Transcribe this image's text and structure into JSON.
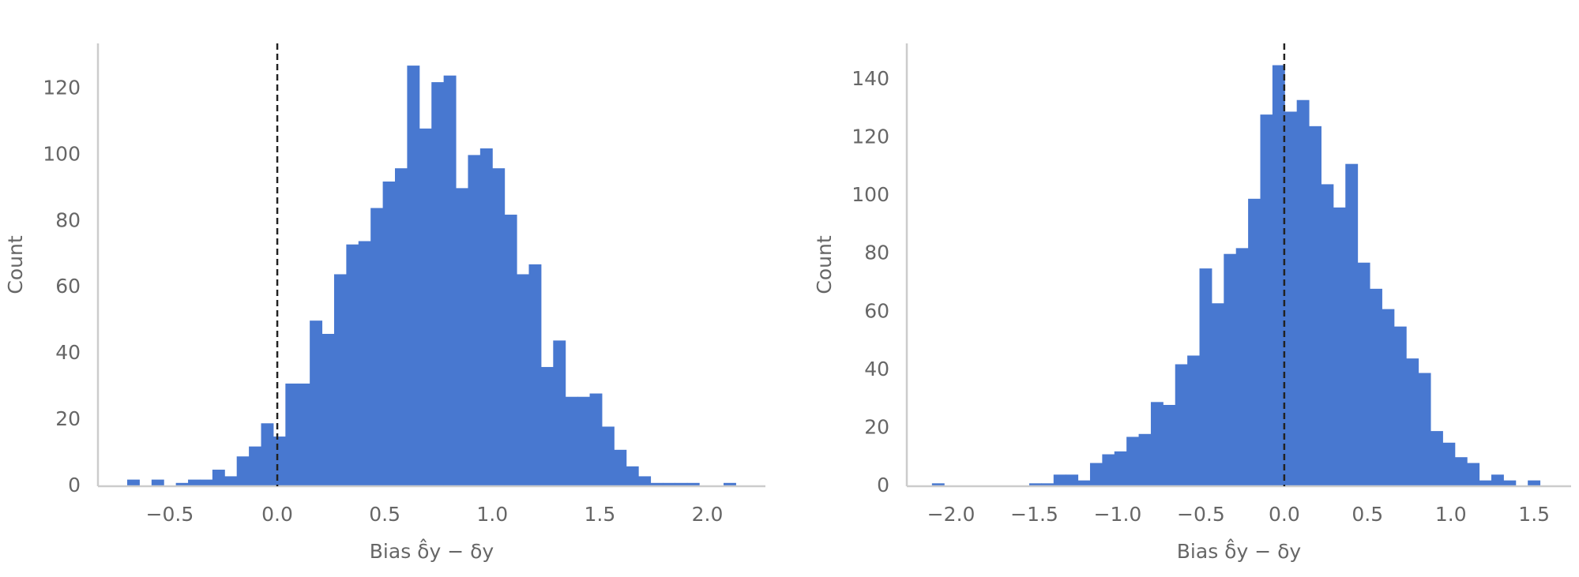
{
  "chart_data": [
    {
      "type": "histogram",
      "color": "#4878d0",
      "xlabel": "Bias δ̂y − δy",
      "ylabel": "Count",
      "bins": [
        -0.698,
        -0.6414,
        -0.5848,
        -0.5282,
        -0.4716,
        -0.415,
        -0.3584,
        -0.3018,
        -0.2452,
        -0.1886,
        -0.132,
        -0.0754,
        -0.0188,
        0.0378,
        0.0944,
        0.151,
        0.2076,
        0.2642,
        0.3208,
        0.3774,
        0.434,
        0.4906,
        0.5472,
        0.6038,
        0.6604,
        0.717,
        0.7736,
        0.8302,
        0.8868,
        0.9434,
        1.0,
        1.0566,
        1.1132,
        1.1698,
        1.2264,
        1.283,
        1.3396,
        1.3962,
        1.4528,
        1.5094,
        1.566,
        1.6226,
        1.6792,
        1.7358,
        1.7924,
        1.849,
        1.9056,
        1.9622,
        2.0188,
        2.0754,
        2.132
      ],
      "values": [
        2,
        0,
        2,
        0,
        1,
        2,
        2,
        5,
        3,
        9,
        12,
        19,
        15,
        31,
        31,
        50,
        46,
        64,
        73,
        74,
        84,
        92,
        96,
        127,
        108,
        122,
        124,
        90,
        100,
        102,
        96,
        82,
        64,
        67,
        36,
        44,
        27,
        27,
        28,
        18,
        11,
        6,
        3,
        1,
        1,
        1,
        1,
        0,
        0,
        1
      ],
      "xlim": [
        -0.834,
        2.27
      ],
      "ylim": [
        0,
        133.7
      ],
      "xticks": [
        {
          "value": -0.5,
          "label": "−0.5"
        },
        {
          "value": 0,
          "label": "0.0"
        },
        0.5,
        {
          "value": 1,
          "label": "1.0"
        },
        1.5,
        {
          "value": 2,
          "label": "2.0"
        }
      ],
      "yticks": [
        0,
        20,
        40,
        60,
        80,
        100,
        120
      ],
      "vline": 0
    },
    {
      "type": "histogram",
      "color": "#4878d0",
      "xlabel": "Bias δ̂y − δy",
      "ylabel": "Count",
      "bins": [
        -2.115,
        -2.042,
        -1.969,
        -1.896,
        -1.823,
        -1.75,
        -1.677,
        -1.604,
        -1.531,
        -1.458,
        -1.385,
        -1.312,
        -1.239,
        -1.166,
        -1.093,
        -1.02,
        -0.947,
        -0.874,
        -0.801,
        -0.728,
        -0.655,
        -0.582,
        -0.509,
        -0.436,
        -0.363,
        -0.29,
        -0.217,
        -0.144,
        -0.071,
        0.002,
        0.075,
        0.148,
        0.221,
        0.294,
        0.367,
        0.44,
        0.513,
        0.586,
        0.659,
        0.732,
        0.805,
        0.878,
        0.951,
        1.024,
        1.097,
        1.17,
        1.243,
        1.316,
        1.389,
        1.462,
        1.535
      ],
      "values": [
        1,
        0,
        0,
        0,
        0,
        0,
        0,
        0,
        1,
        1,
        4,
        4,
        2,
        8,
        11,
        12,
        17,
        18,
        29,
        28,
        42,
        45,
        75,
        63,
        80,
        82,
        99,
        128,
        145,
        129,
        133,
        124,
        104,
        96,
        111,
        77,
        68,
        61,
        55,
        44,
        39,
        19,
        15,
        10,
        8,
        2,
        4,
        2,
        0,
        2
      ],
      "xlim": [
        -2.266,
        1.722
      ],
      "ylim": [
        0,
        152.5
      ],
      "xticks": [
        {
          "value": -2,
          "label": "−2.0"
        },
        {
          "value": -1.5,
          "label": "−1.5"
        },
        {
          "value": -1,
          "label": "−1.0"
        },
        {
          "value": -0.5,
          "label": "−0.5"
        },
        {
          "value": 0,
          "label": "0.0"
        },
        0.5,
        {
          "value": 1,
          "label": "1.0"
        },
        1.5
      ],
      "yticks": [
        0,
        20,
        40,
        60,
        80,
        100,
        120,
        140
      ],
      "vline": 0
    }
  ]
}
